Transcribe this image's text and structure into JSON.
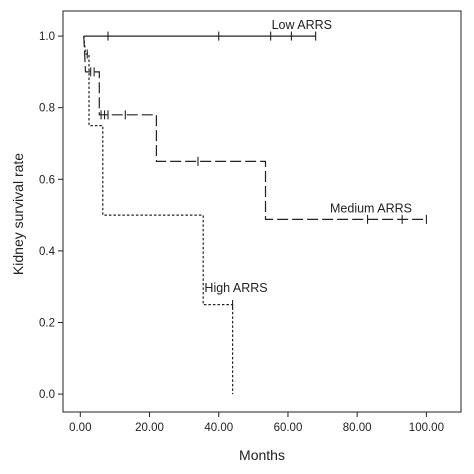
{
  "chart_data": {
    "type": "line",
    "subtype": "kaplan-meier step curve",
    "title": "",
    "xlabel": "Months",
    "ylabel": "Kidney survival rate",
    "xlim": [
      -5,
      110
    ],
    "ylim": [
      -0.05,
      1.07
    ],
    "x_ticks": [
      0,
      20,
      40,
      60,
      80,
      100
    ],
    "x_tick_labels": [
      "0.00",
      "20.00",
      "40.00",
      "60.00",
      "80.00",
      "100.00"
    ],
    "y_ticks": [
      0.0,
      0.2,
      0.4,
      0.6,
      0.8,
      1.0
    ],
    "y_tick_labels": [
      "0.0",
      "0.2",
      "0.4",
      "0.6",
      "0.8",
      "1.0"
    ],
    "grid": false,
    "legend": "none (curves labelled directly)",
    "line_color": "#222222",
    "series": [
      {
        "name": "Low ARRS",
        "line_style": "solid",
        "steps": [
          [
            1,
            1.0
          ],
          [
            68,
            1.0
          ]
        ],
        "censored": [
          [
            8,
            1.0
          ],
          [
            40,
            1.0
          ],
          [
            55,
            1.0
          ],
          [
            61,
            1.0
          ],
          [
            68,
            1.0
          ]
        ]
      },
      {
        "name": "Medium ARRS",
        "line_style": "dashed",
        "steps": [
          [
            1,
            1.0
          ],
          [
            1.5,
            0.9
          ],
          [
            5.5,
            0.9
          ],
          [
            5.5,
            0.78
          ],
          [
            22,
            0.78
          ],
          [
            22,
            0.65
          ],
          [
            53.5,
            0.65
          ],
          [
            53.5,
            0.488
          ],
          [
            100,
            0.488
          ]
        ],
        "censored": [
          [
            3,
            0.9
          ],
          [
            4,
            0.9
          ],
          [
            6,
            0.78
          ],
          [
            7,
            0.78
          ],
          [
            8,
            0.78
          ],
          [
            13,
            0.78
          ],
          [
            34,
            0.65
          ],
          [
            83,
            0.488
          ],
          [
            93,
            0.488
          ],
          [
            100,
            0.488
          ]
        ]
      },
      {
        "name": "High ARRS",
        "line_style": "dotted",
        "steps": [
          [
            1,
            1.0
          ],
          [
            1.5,
            0.95
          ],
          [
            2.5,
            0.95
          ],
          [
            2.5,
            0.75
          ],
          [
            6.5,
            0.75
          ],
          [
            6.5,
            0.5
          ],
          [
            35.5,
            0.5
          ],
          [
            35.5,
            0.25
          ],
          [
            44,
            0.25
          ],
          [
            44,
            0.0
          ]
        ],
        "censored": [
          [
            2,
            0.95
          ],
          [
            44,
            0.25
          ]
        ]
      }
    ]
  }
}
